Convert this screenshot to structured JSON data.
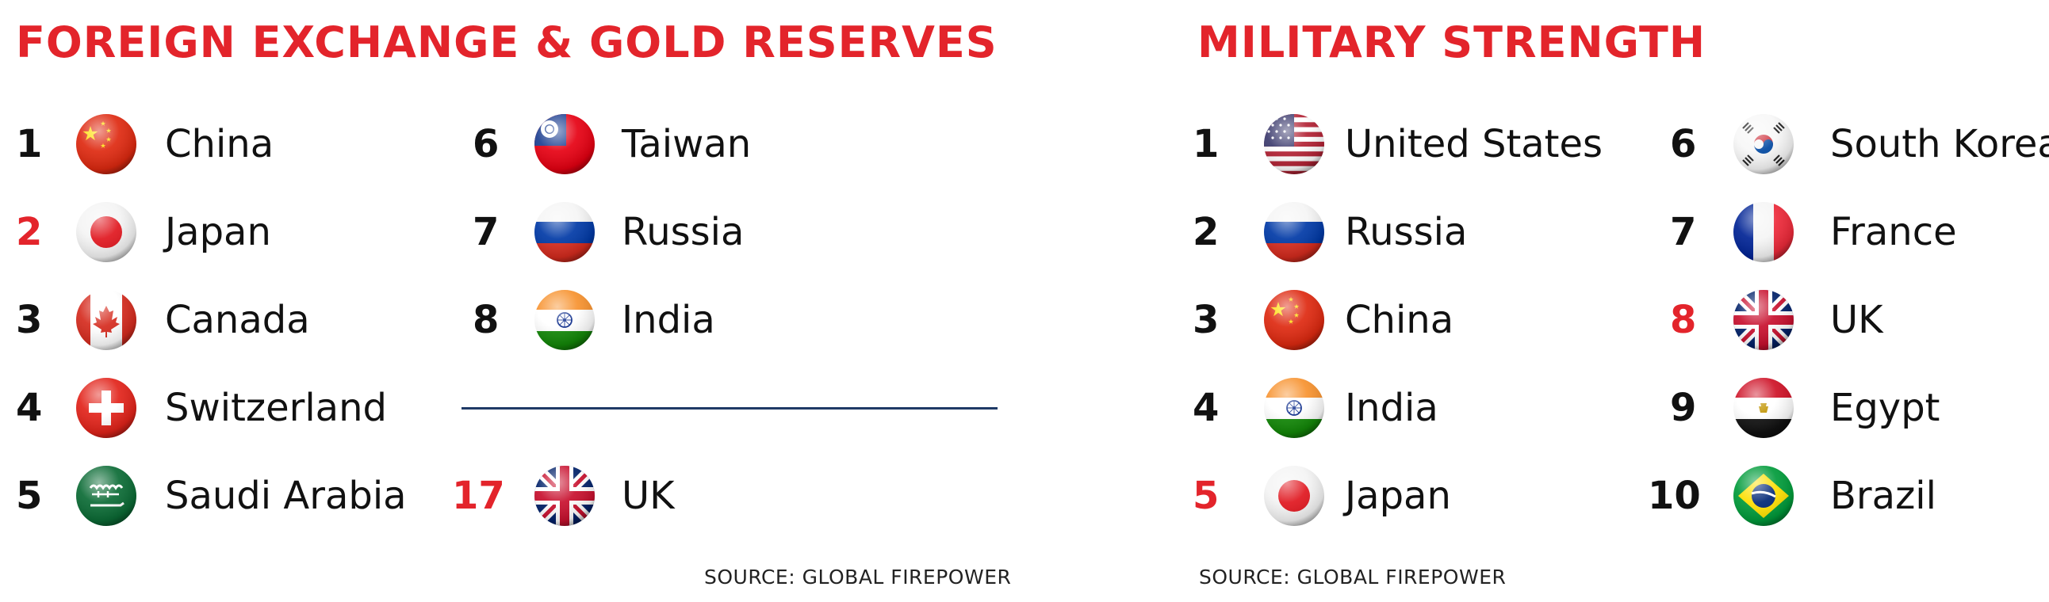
{
  "colors": {
    "accent": "#e3242b",
    "text": "#111111",
    "divider": "#1f3a66"
  },
  "sections": [
    {
      "title": "FOREIGN EXCHANGE & GOLD RESERVES",
      "source": "SOURCE: GLOBAL FIREPOWER",
      "entries": [
        {
          "rank": "1",
          "country": "China",
          "flag": "china-flag-icon",
          "highlight": false
        },
        {
          "rank": "2",
          "country": "Japan",
          "flag": "japan-flag-icon",
          "highlight": true
        },
        {
          "rank": "3",
          "country": "Canada",
          "flag": "canada-flag-icon",
          "highlight": false
        },
        {
          "rank": "4",
          "country": "Switzerland",
          "flag": "switzerland-flag-icon",
          "highlight": false
        },
        {
          "rank": "5",
          "country": "Saudi Arabia",
          "flag": "saudi-arabia-flag-icon",
          "highlight": false
        },
        {
          "rank": "6",
          "country": "Taiwan",
          "flag": "taiwan-flag-icon",
          "highlight": false
        },
        {
          "rank": "7",
          "country": "Russia",
          "flag": "russia-flag-icon",
          "highlight": false
        },
        {
          "rank": "8",
          "country": "India",
          "flag": "india-flag-icon",
          "highlight": false
        },
        {
          "rank": "17",
          "country": "UK",
          "flag": "uk-flag-icon",
          "highlight": true
        }
      ]
    },
    {
      "title": "MILITARY STRENGTH",
      "source": "SOURCE: GLOBAL FIREPOWER",
      "entries": [
        {
          "rank": "1",
          "country": "United States",
          "flag": "usa-flag-icon",
          "highlight": false
        },
        {
          "rank": "2",
          "country": "Russia",
          "flag": "russia-flag-icon",
          "highlight": false
        },
        {
          "rank": "3",
          "country": "China",
          "flag": "china-flag-icon",
          "highlight": false
        },
        {
          "rank": "4",
          "country": "India",
          "flag": "india-flag-icon",
          "highlight": false
        },
        {
          "rank": "5",
          "country": "Japan",
          "flag": "japan-flag-icon",
          "highlight": true
        },
        {
          "rank": "6",
          "country": "South Korea",
          "flag": "south-korea-flag-icon",
          "highlight": false
        },
        {
          "rank": "7",
          "country": "France",
          "flag": "france-flag-icon",
          "highlight": false
        },
        {
          "rank": "8",
          "country": "UK",
          "flag": "uk-flag-icon",
          "highlight": true
        },
        {
          "rank": "9",
          "country": "Egypt",
          "flag": "egypt-flag-icon",
          "highlight": false
        },
        {
          "rank": "10",
          "country": "Brazil",
          "flag": "brazil-flag-icon",
          "highlight": false
        }
      ]
    }
  ]
}
